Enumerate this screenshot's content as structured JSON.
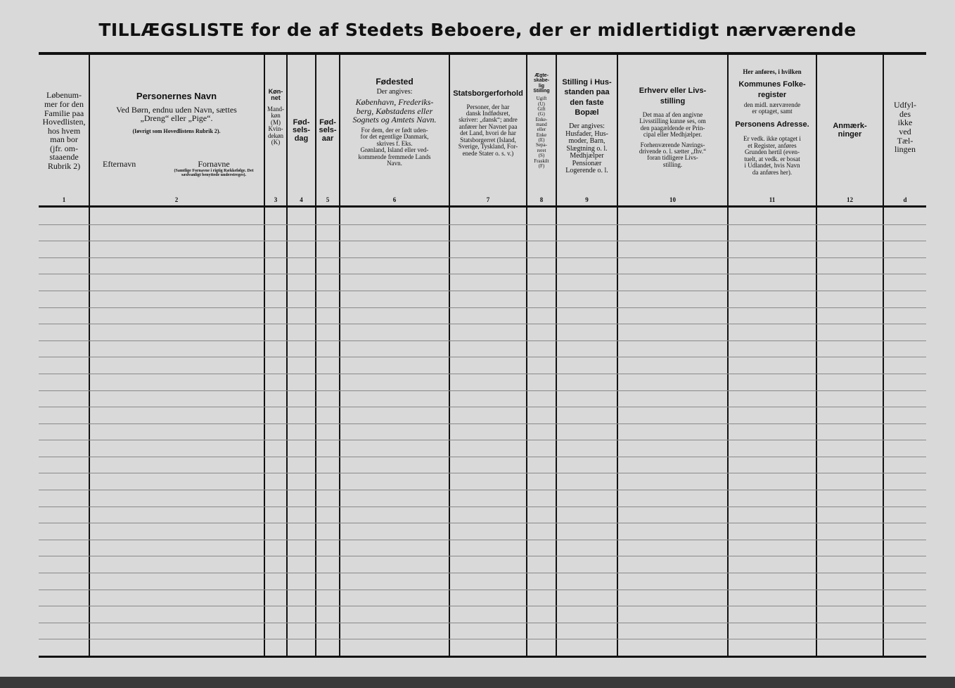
{
  "title": "TILLÆGSLISTE for de af Stedets Beboere, der er midlertidigt nærværende",
  "columns": [
    {
      "number": "1",
      "text": "Løbenum-\nmer for den\nFamilie paa\nHovedlisten,\nhos hvem\nman bor\n(jfr. om-\nstaaende\nRubrik 2)"
    },
    {
      "number": "2",
      "heading": "Personernes Navn",
      "text": "Ved Børn, endnu uden Navn, sættes\n„Dreng“ eller „Pige“.",
      "note": "(Iøvrigt som Hovedlistens Rubrik 2).",
      "sub_left": "Efternavn",
      "sub_right": "Fornavne",
      "sub_right_note": "(Samtlige Fornavne i rigtig Rækkefølge. Det sædvanligt benyttede understreges)."
    },
    {
      "number": "3",
      "heading": "Køn-\nnet",
      "text": "Mand-\nkøn\n(M)\nKvin-\ndekøn\n(K)"
    },
    {
      "number": "4",
      "heading": "Fød-\nsels-\ndag"
    },
    {
      "number": "5",
      "heading": "Fød-\nsels-\naar"
    },
    {
      "number": "6",
      "heading": "Fødested",
      "text": "Der angives:",
      "italic": "København, Frederiks-\nberg, Købstadens eller\nSognets og Amtets Navn.",
      "note": "For dem, der er født uden-\nfor det egentlige Danmark,\nskrives f. Eks.\nGrønland, Island eller ved-\nkommende fremmede Lands\nNavn."
    },
    {
      "number": "7",
      "heading": "Statsborgerforhold",
      "text": "Personer, der har\ndansk Indfødsret,\nskriver: „dansk“; andre\nanfører her Navnet paa\ndet Land, hvori de har\nStatsborgerret (Island,\nSverige, Tyskland, For-\nenede Stater o. s. v.)"
    },
    {
      "number": "8",
      "heading": "Ægte-\nskabe-\nlig\nStilling",
      "text": "Ugift\n(U)\nGift\n(G)\nEnke-\nmand\neller\nEnke\n(E)\nSepa-\nreret\n(S)\nFraskilt\n(F)"
    },
    {
      "number": "9",
      "heading": "Stilling i Hus-\nstanden paa\nden faste\nBopæl",
      "text": "Der angives:\nHusfader, Hus-\nmoder, Barn,\nSlægtning o. l.\nMedhjælper\nPensionær\nLogerende o. l."
    },
    {
      "number": "10",
      "heading": "Erhverv eller Livs-\nstilling",
      "text": "Det maa af den angivne\nLivsstilling kunne ses, om\nden paagældende er Prin-\ncipal eller Medhjælper.",
      "note": "Forhenværende Nærings-\ndrivende o. l. sætter „fhv.“\nforan tidligere Livs-\nstilling."
    },
    {
      "number": "11",
      "pre": "Her anføres, i hvilken",
      "heading": "Kommunes Folke-\nregister",
      "text": "den midl. nærværende\ner optaget, samt",
      "heading2": "Personens Adresse.",
      "note": "Er vedk. ikke optaget i\net Register, anføres\nGrunden hertil (even-\ntuelt, at vedk. er bosat\ni Udlandet, hvis Navn\nda anføres her)."
    },
    {
      "number": "12",
      "heading": "Anmærk-\nninger"
    },
    {
      "number": "d",
      "text": "Udfyl-\ndes\nikke\nved\nTæl-\nlingen"
    }
  ],
  "row_count": 27
}
